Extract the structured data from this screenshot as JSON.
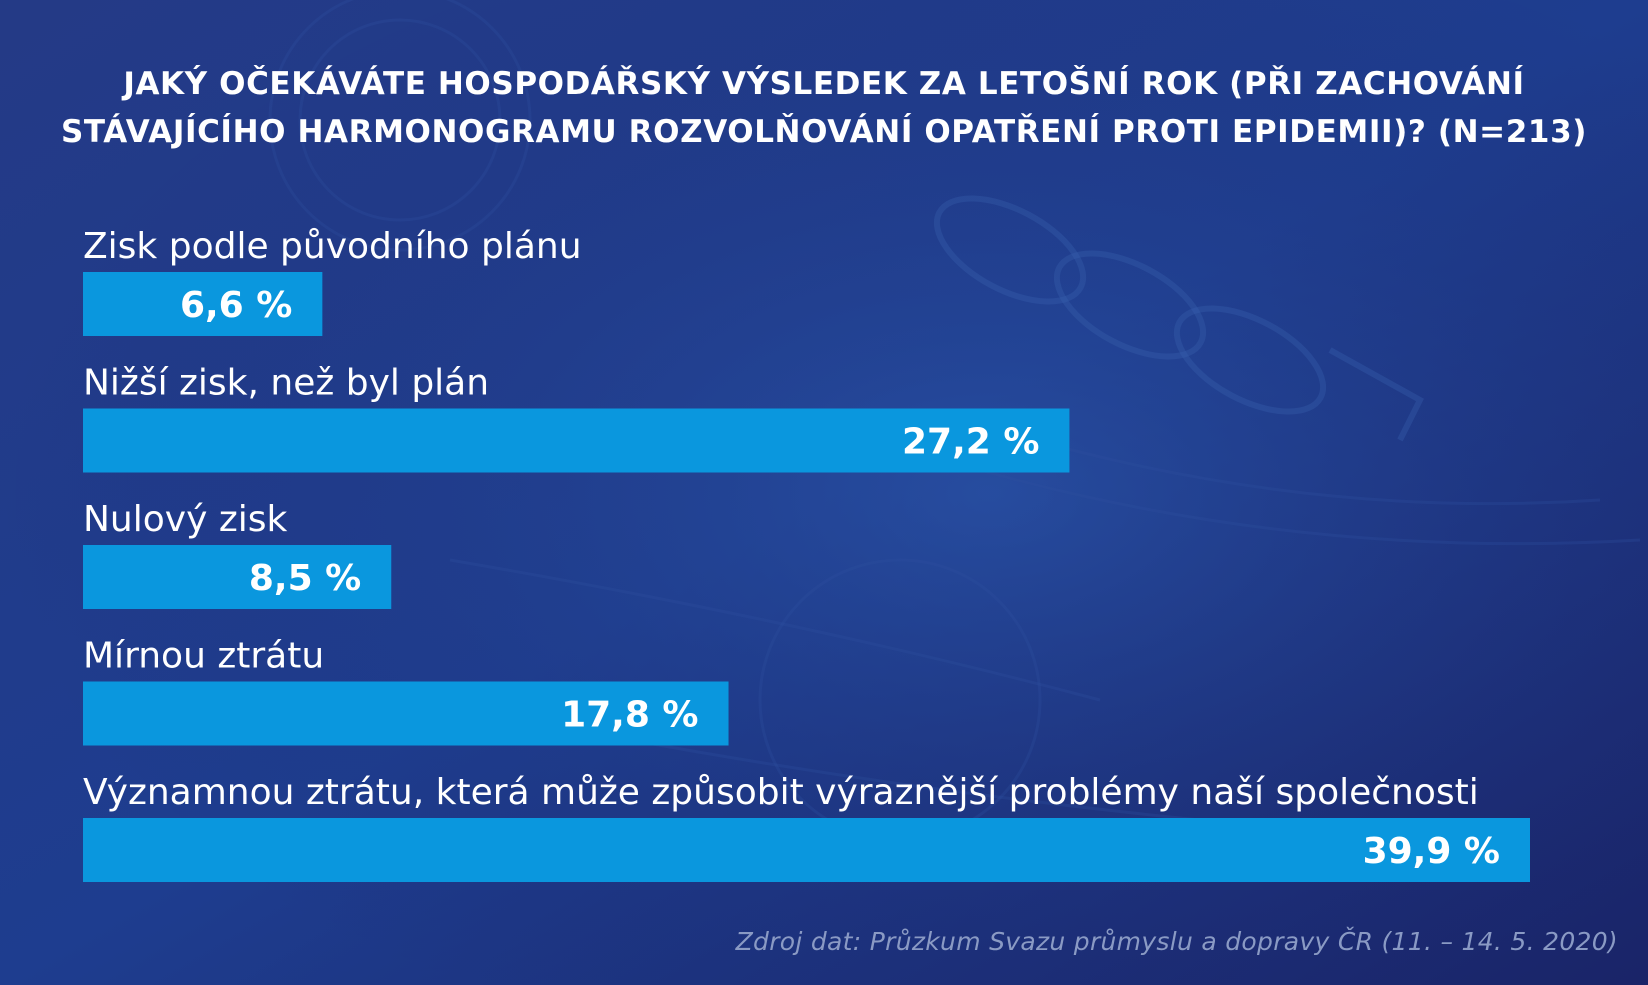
{
  "title": {
    "line1": "JAKÝ OČEKÁVÁTE HOSPODÁŘSKÝ VÝSLEDEK ZA LETOŠNÍ ROK (PŘI ZACHOVÁNÍ",
    "line2": "STÁVAJÍCÍHO HARMONOGRAMU ROZVOLŇOVÁNÍ OPATŘENÍ PROTI EPIDEMII)? (N=213)"
  },
  "source": "Zdroj dat: Průzkum Svazu průmyslu a dopravy ČR (11. – 14. 5. 2020)",
  "colors": {
    "bar": "#0a97de",
    "background": "#1d2f78",
    "text": "#ffffff",
    "source_text": "#8a9ac4"
  },
  "chart_data": {
    "type": "bar",
    "orientation": "horizontal",
    "categories": [
      "Zisk podle původního plánu",
      "Nižší zisk, než byl plán",
      "Nulový zisk",
      "Mírnou ztrátu",
      "Významnou ztrátu, která může způsobit výraznější problémy naší společnosti"
    ],
    "values": [
      6.6,
      27.2,
      8.5,
      17.8,
      39.9
    ],
    "value_labels": [
      "6,6 %",
      "27,2 %",
      "8,5 %",
      "17,8 %",
      "39,9 %"
    ],
    "xlim": [
      0,
      39.9
    ],
    "grid": false,
    "legend": "none"
  }
}
